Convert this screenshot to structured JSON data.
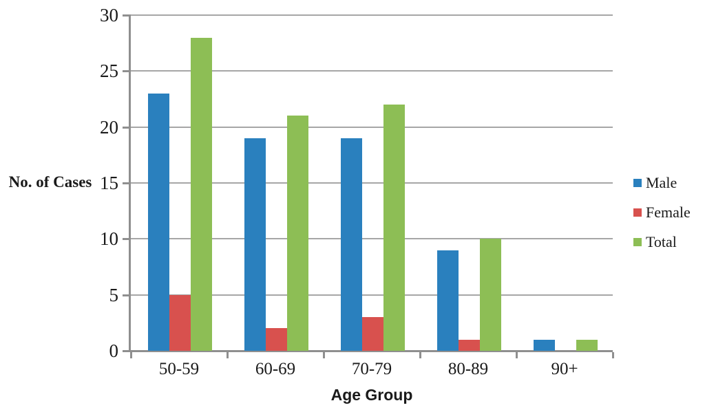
{
  "chart_data": {
    "type": "bar",
    "title": "",
    "xlabel": "Age Group",
    "ylabel": "No. of Cases",
    "categories": [
      "50-59",
      "60-69",
      "70-79",
      "80-89",
      "90+"
    ],
    "series": [
      {
        "name": "Male",
        "color": "#2a80be",
        "values": [
          23,
          19,
          19,
          9,
          1
        ]
      },
      {
        "name": "Female",
        "color": "#d8514e",
        "values": [
          5,
          2,
          3,
          1,
          0
        ]
      },
      {
        "name": "Total",
        "color": "#8dbe55",
        "values": [
          28,
          21,
          22,
          10,
          1
        ]
      }
    ],
    "ylim": [
      0,
      30
    ],
    "ytick_step": 5,
    "yticks": [
      0,
      5,
      10,
      15,
      20,
      25,
      30
    ],
    "grid": true,
    "legend_position": "right",
    "legend_entries": [
      "Male",
      "Female",
      "Total"
    ]
  },
  "colors": {
    "axis": "#8f8f8f",
    "gridline": "#a6a6a6",
    "text": "#1a1a1a",
    "background": "#ffffff"
  }
}
